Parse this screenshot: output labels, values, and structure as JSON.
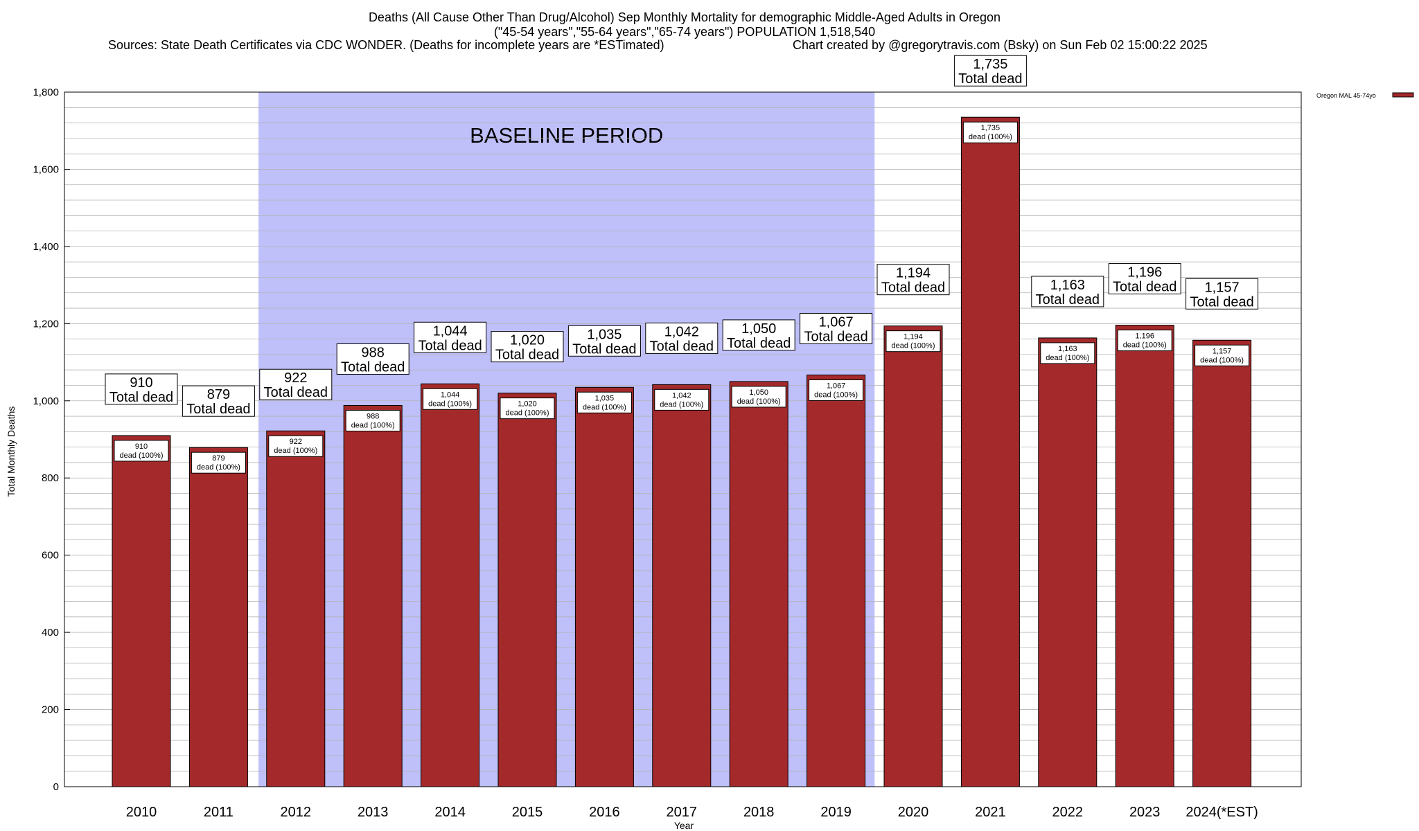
{
  "chart_data": {
    "type": "bar",
    "title_lines": [
      "Deaths (All Cause Other Than Drug/Alcohol) Sep Monthly Mortality for demographic Middle-Aged Adults in Oregon",
      "(\"45-54 years\",\"55-64 years\",\"65-74 years\") POPULATION 1,518,540"
    ],
    "source_note": "Sources: State Death Certificates via CDC WONDER. (Deaths for incomplete years are *ESTimated)",
    "credit_note": "Chart created by @gregorytravis.com (Bsky) on Sun Feb 02 15:00:22 2025",
    "xlabel": "Year",
    "ylabel": "Total Monthly Deaths",
    "ylim": [
      0,
      1800
    ],
    "y_ticks": [
      0,
      200,
      400,
      600,
      800,
      1000,
      1200,
      1400,
      1600,
      1800
    ],
    "y_tick_labels": [
      "0",
      "200",
      "400",
      "600",
      "800",
      "1,000",
      "1,200",
      "1,400",
      "1,600",
      "1,800"
    ],
    "y_minor_step": 40,
    "grid": true,
    "legend_position": "top-right, outside plot",
    "series": [
      {
        "name": "Oregon MAL 45-74yo",
        "color": "#a4292b",
        "values": [
          910,
          879,
          922,
          988,
          1044,
          1020,
          1035,
          1042,
          1050,
          1067,
          1194,
          1735,
          1163,
          1196,
          1157
        ]
      }
    ],
    "categories": [
      "2010",
      "2011",
      "2012",
      "2013",
      "2014",
      "2015",
      "2016",
      "2017",
      "2018",
      "2019",
      "2020",
      "2021",
      "2022",
      "2023",
      "2024(*EST)"
    ],
    "top_labels": [
      "910",
      "879",
      "922",
      "988",
      "1,044",
      "1,020",
      "1,035",
      "1,042",
      "1,050",
      "1,067",
      "1,194",
      "1,735",
      "1,163",
      "1,196",
      "1,157"
    ],
    "top_label_suffix": "Total dead",
    "inner_labels": [
      "910",
      "879",
      "922",
      "988",
      "1,044",
      "1,020",
      "1,035",
      "1,042",
      "1,050",
      "1,067",
      "1,194",
      "1,735",
      "1,163",
      "1,196",
      "1,157"
    ],
    "inner_label_suffix": "dead (100%)",
    "annotation": {
      "text": "BASELINE PERIOD",
      "from_category": "2012",
      "to_category": "2019",
      "color": "#bfbffa"
    }
  }
}
